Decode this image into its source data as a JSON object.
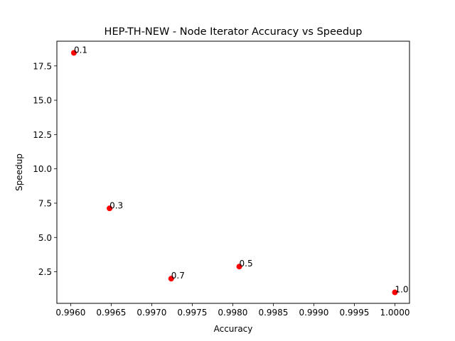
{
  "chart_data": {
    "type": "scatter",
    "title": "HEP-TH-NEW - Node Iterator Accuracy vs Speedup",
    "xlabel": "Accuracy",
    "ylabel": "Speedup",
    "xlim": [
      0.99583,
      1.00018
    ],
    "ylim": [
      0.2,
      19.3
    ],
    "xticks": [
      "0.9960",
      "0.9965",
      "0.9970",
      "0.9975",
      "0.9980",
      "0.9985",
      "0.9990",
      "0.9995",
      "1.0000"
    ],
    "yticks": [
      "2.5",
      "5.0",
      "7.5",
      "10.0",
      "12.5",
      "15.0",
      "17.5"
    ],
    "grid": false,
    "marker_color": "#ff0000",
    "points": [
      {
        "x": 0.99604,
        "y": 18.45,
        "label": "0.1"
      },
      {
        "x": 0.99648,
        "y": 7.12,
        "label": "0.3"
      },
      {
        "x": 0.99724,
        "y": 2.0,
        "label": "0.7"
      },
      {
        "x": 0.99808,
        "y": 2.88,
        "label": "0.5"
      },
      {
        "x": 1.0,
        "y": 1.0,
        "label": "1.0"
      }
    ]
  }
}
